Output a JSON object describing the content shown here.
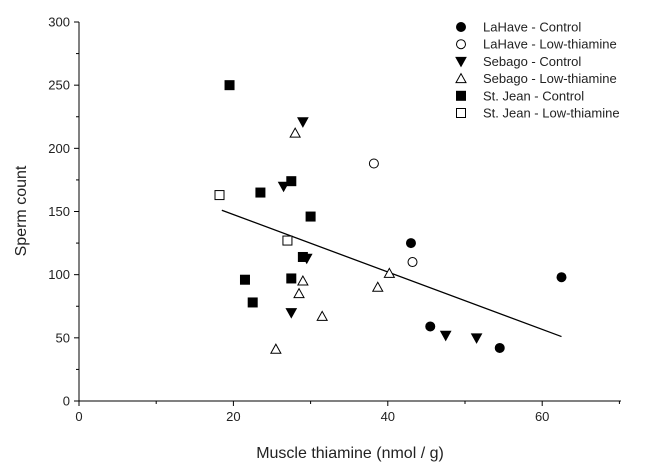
{
  "chart_data": {
    "type": "scatter",
    "xlabel": "Muscle thiamine (nmol / g)",
    "ylabel": "Sperm count",
    "xlim": [
      0,
      70
    ],
    "ylim": [
      0,
      300
    ],
    "x_ticks": [
      "0",
      "20",
      "40",
      "60"
    ],
    "y_ticks": [
      "0",
      "50",
      "100",
      "150",
      "200",
      "250",
      "300"
    ],
    "grid": false,
    "legend_position": "top-right",
    "series": [
      {
        "name": "LaHave - Control",
        "marker": "circle",
        "filled": true,
        "points": [
          [
            43,
            125
          ],
          [
            45.5,
            59
          ],
          [
            54.5,
            42
          ],
          [
            62.5,
            98
          ]
        ]
      },
      {
        "name": "LaHave - Low-thiamine",
        "marker": "circle",
        "filled": false,
        "points": [
          [
            38.2,
            188
          ],
          [
            43.2,
            110
          ]
        ]
      },
      {
        "name": "Sebago - Control",
        "marker": "triangle-down",
        "filled": true,
        "points": [
          [
            29,
            221
          ],
          [
            26.5,
            170
          ],
          [
            27.5,
            70
          ],
          [
            29.5,
            113
          ],
          [
            47.5,
            52
          ],
          [
            51.5,
            50
          ]
        ]
      },
      {
        "name": "Sebago - Low-thiamine",
        "marker": "triangle-up",
        "filled": false,
        "points": [
          [
            28,
            212
          ],
          [
            25.5,
            41
          ],
          [
            28.5,
            85
          ],
          [
            29,
            95
          ],
          [
            31.5,
            67
          ],
          [
            38.7,
            90
          ],
          [
            40.2,
            101
          ]
        ]
      },
      {
        "name": "St. Jean - Control",
        "marker": "square",
        "filled": true,
        "points": [
          [
            19.5,
            250
          ],
          [
            23.5,
            165
          ],
          [
            27.5,
            174
          ],
          [
            30,
            146
          ],
          [
            29,
            114
          ],
          [
            27.5,
            97
          ],
          [
            21.5,
            96
          ],
          [
            22.5,
            78
          ]
        ]
      },
      {
        "name": "St. Jean - Low-thiamine",
        "marker": "square",
        "filled": false,
        "points": [
          [
            18.2,
            163
          ],
          [
            27,
            127
          ]
        ]
      }
    ],
    "trendline": {
      "x": [
        18.5,
        62.5
      ],
      "y": [
        151,
        51
      ]
    }
  }
}
